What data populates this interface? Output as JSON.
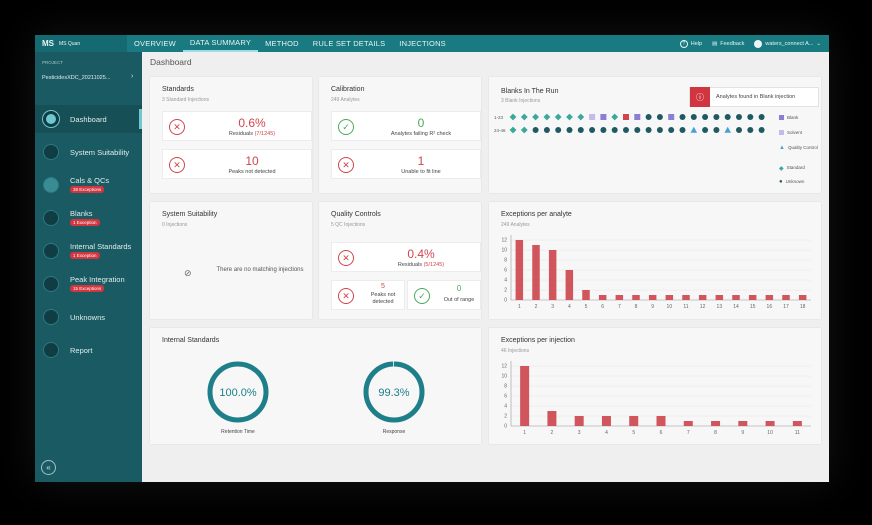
{
  "app": {
    "logo": "MS",
    "name": "MS Quan",
    "tabs": [
      {
        "label": "OVERVIEW"
      },
      {
        "label": "DATA SUMMARY"
      },
      {
        "label": "METHOD"
      },
      {
        "label": "RULE SET DETAILS"
      },
      {
        "label": "INJECTIONS"
      }
    ],
    "help": "Help",
    "feedback": "Feedback",
    "user": "waters_connect A..."
  },
  "sidebar": {
    "project_label": "PROJECT",
    "project_name": "PesticidesXDC_20211025...",
    "items": [
      {
        "label": "Dashboard",
        "badge": ""
      },
      {
        "label": "System Suitability",
        "badge": ""
      },
      {
        "label": "Cals & QCs",
        "badge": "38 Exceptions"
      },
      {
        "label": "Blanks",
        "badge": "1 Exception"
      },
      {
        "label": "Internal Standards",
        "badge": "1 Exception"
      },
      {
        "label": "Peak Integration",
        "badge": "15 Exceptions"
      },
      {
        "label": "Unknowns",
        "badge": ""
      },
      {
        "label": "Report",
        "badge": ""
      }
    ],
    "collapse_glyph": "«"
  },
  "page": {
    "title": "Dashboard"
  },
  "standards": {
    "title": "Standards",
    "subtitle": "3 Standard Injections",
    "row1_value": "0.6%",
    "row1_label": "Residuals",
    "row1_label_extra": "(7/1245)",
    "row2_value": "10",
    "row2_label": "Peaks not detected"
  },
  "calibration": {
    "title": "Calibration",
    "subtitle": "249 Analytes",
    "row1_value": "0",
    "row1_label": "Analytes failing R² check",
    "row2_value": "1",
    "row2_label": "Unable to fit line"
  },
  "blanks": {
    "title": "Blanks In The Run",
    "subtitle": "3 Blank Injections",
    "alert": "Analytes found in Blank injection",
    "lane1_label": "1-23",
    "lane2_label": "24-46",
    "legend": [
      "Blank",
      "Solvent",
      "Quality Control",
      "Standard",
      "Unknown"
    ],
    "colors": {
      "blank": "#8a7ed6",
      "blank_flag": "#d0454d",
      "solvent": "#c5b9ee",
      "qc": "#4a9fd6",
      "standard": "#3aa89a",
      "unknown": "#1f5a63"
    },
    "lane1": [
      "standard",
      "standard",
      "standard",
      "standard",
      "standard",
      "standard",
      "standard",
      "solvent",
      "blank",
      "standard",
      "blank_flag",
      "blank",
      "unknown",
      "unknown",
      "blank",
      "unknown",
      "unknown",
      "unknown",
      "unknown",
      "unknown",
      "unknown",
      "unknown",
      "unknown"
    ],
    "lane2": [
      "standard",
      "standard",
      "unknown",
      "unknown",
      "unknown",
      "unknown",
      "unknown",
      "unknown",
      "unknown",
      "unknown",
      "unknown",
      "unknown",
      "unknown",
      "unknown",
      "unknown",
      "unknown",
      "qc",
      "unknown",
      "unknown",
      "qc",
      "unknown",
      "unknown",
      "unknown"
    ]
  },
  "system_suitability": {
    "title": "System Suitability",
    "subtitle": "0 Injections",
    "empty_text": "There are no matching injections"
  },
  "quality_controls": {
    "title": "Quality Controls",
    "subtitle": "5 QC Injections",
    "row1_value": "0.4%",
    "row1_label": "Residuals",
    "row1_label_extra": "(5/1245)",
    "peaks_value": "5",
    "peaks_label": "Peaks not detected",
    "range_value": "0",
    "range_label": "Out of range"
  },
  "internal_standards": {
    "title": "Internal Standards",
    "retention_value": "100.0%",
    "retention_label": "Retention Time",
    "response_value": "99.3%",
    "response_label": "Response",
    "retention_pct": 100.0,
    "response_pct": 99.3,
    "ring_color": "#1e7e8a"
  },
  "chart_data": [
    {
      "type": "bar",
      "title": "Exceptions per analyte",
      "subtitle": "249 Analytes",
      "categories": [
        "1",
        "2",
        "3",
        "4",
        "5",
        "6",
        "7",
        "8",
        "9",
        "10",
        "11",
        "12",
        "13",
        "14",
        "15",
        "16",
        "17",
        "18"
      ],
      "values": [
        12,
        11,
        10,
        6,
        2,
        1,
        1,
        1,
        1,
        1,
        1,
        1,
        1,
        1,
        1,
        1,
        1,
        1
      ],
      "yticks": [
        0,
        2,
        4,
        6,
        8,
        10,
        12
      ],
      "ylim": [
        0,
        13
      ],
      "color": "#d0555d"
    },
    {
      "type": "bar",
      "title": "Exceptions per injection",
      "subtitle": "46 Injections",
      "categories": [
        "1",
        "2",
        "3",
        "4",
        "5",
        "6",
        "7",
        "8",
        "9",
        "10",
        "11"
      ],
      "values": [
        12,
        3,
        2,
        2,
        2,
        2,
        1,
        1,
        1,
        1,
        1
      ],
      "yticks": [
        0,
        2,
        4,
        6,
        8,
        10,
        12
      ],
      "ylim": [
        0,
        13
      ],
      "color": "#d0555d"
    }
  ]
}
